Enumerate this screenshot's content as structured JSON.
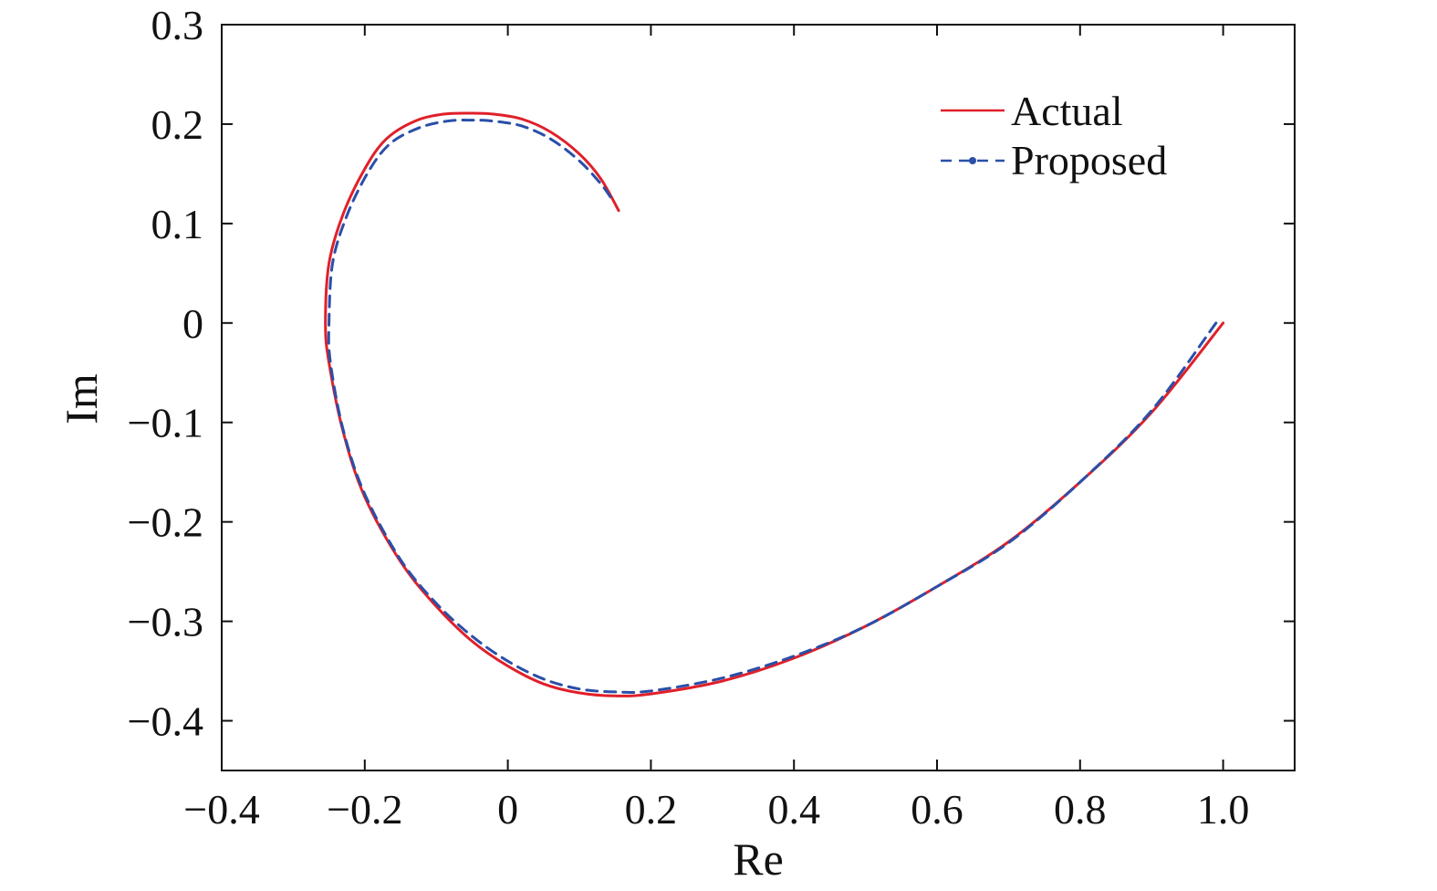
{
  "chart_data": {
    "type": "line",
    "title": "",
    "xlabel": "Re",
    "ylabel": "Im",
    "xlim": [
      -0.4,
      1.1
    ],
    "ylim": [
      -0.45,
      0.3
    ],
    "xticks": [
      -0.4,
      -0.2,
      0,
      0.2,
      0.4,
      0.6,
      0.8,
      1.0
    ],
    "xtick_labels": [
      "−0.4",
      "−0.2",
      "0",
      "0.2",
      "0.4",
      "0.6",
      "0.8",
      "1.0"
    ],
    "yticks": [
      0.3,
      0.2,
      0.1,
      0,
      -0.1,
      -0.2,
      -0.3,
      -0.4
    ],
    "ytick_labels": [
      "0.3",
      "0.2",
      "0.1",
      "0",
      "−0.1",
      "−0.2",
      "−0.3",
      "−0.4"
    ],
    "grid": false,
    "legend_position": "top-right",
    "series": [
      {
        "name": "Actual",
        "color": "#e0202a",
        "style": "solid",
        "x": [
          1.0,
          0.9,
          0.8,
          0.7,
          0.6,
          0.5,
          0.4,
          0.3,
          0.2,
          0.15,
          0.1,
          0.05,
          0.0,
          -0.05,
          -0.1,
          -0.15,
          -0.2,
          -0.23,
          -0.25,
          -0.255,
          -0.25,
          -0.23,
          -0.2,
          -0.17,
          -0.13,
          -0.09,
          -0.05,
          -0.02,
          0.02,
          0.06,
          0.1,
          0.13,
          0.155
        ],
        "y": [
          0.0,
          -0.09,
          -0.16,
          -0.22,
          -0.265,
          -0.305,
          -0.337,
          -0.36,
          -0.373,
          -0.375,
          -0.372,
          -0.363,
          -0.345,
          -0.32,
          -0.285,
          -0.24,
          -0.175,
          -0.11,
          -0.04,
          0.0,
          0.06,
          0.11,
          0.155,
          0.185,
          0.203,
          0.21,
          0.211,
          0.21,
          0.205,
          0.192,
          0.17,
          0.145,
          0.113
        ]
      },
      {
        "name": "Proposed",
        "color": "#2a4fa8",
        "style": "dashed",
        "x": [
          0.99,
          0.9,
          0.8,
          0.7,
          0.6,
          0.5,
          0.4,
          0.3,
          0.2,
          0.15,
          0.1,
          0.05,
          0.0,
          -0.05,
          -0.1,
          -0.15,
          -0.2,
          -0.23,
          -0.248,
          -0.25,
          -0.245,
          -0.225,
          -0.195,
          -0.165,
          -0.125,
          -0.085,
          -0.05,
          -0.02,
          0.02,
          0.06,
          0.1,
          0.13,
          0.145
        ],
        "y": [
          0.0,
          -0.088,
          -0.16,
          -0.221,
          -0.265,
          -0.305,
          -0.335,
          -0.357,
          -0.37,
          -0.371,
          -0.368,
          -0.358,
          -0.34,
          -0.315,
          -0.282,
          -0.238,
          -0.172,
          -0.108,
          -0.04,
          0.0,
          0.06,
          0.108,
          0.152,
          0.18,
          0.196,
          0.203,
          0.204,
          0.203,
          0.198,
          0.185,
          0.163,
          0.14,
          0.125
        ]
      }
    ]
  }
}
